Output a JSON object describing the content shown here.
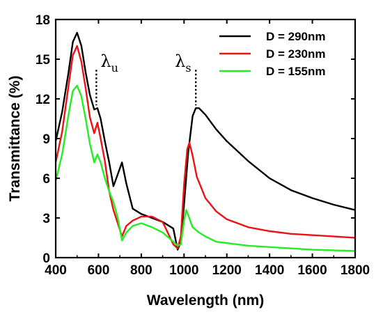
{
  "chart_data": {
    "type": "line",
    "xlabel": "Wavelength (nm)",
    "ylabel": "Transmittance (%)",
    "xlim": [
      400,
      1800
    ],
    "ylim": [
      0,
      18
    ],
    "xticks": [
      400,
      600,
      800,
      1000,
      1200,
      1400,
      1600,
      1800
    ],
    "yticks": [
      0,
      3,
      6,
      9,
      12,
      15,
      18
    ],
    "legend_position": "top-right",
    "annotations": [
      {
        "symbol": "λ",
        "subscript": "u",
        "x": 590
      },
      {
        "symbol": "λ",
        "subscript": "s",
        "x": 1055
      }
    ],
    "series": [
      {
        "name": "D = 290nm",
        "color": "#000000",
        "x": [
          400,
          430,
          460,
          480,
          500,
          520,
          540,
          560,
          580,
          595,
          610,
          630,
          650,
          670,
          690,
          710,
          730,
          760,
          800,
          850,
          900,
          950,
          970,
          985,
          1000,
          1020,
          1040,
          1055,
          1070,
          1100,
          1150,
          1200,
          1300,
          1400,
          1500,
          1600,
          1700,
          1800
        ],
        "y": [
          8.8,
          11.0,
          14.0,
          16.3,
          17.0,
          16.0,
          14.0,
          12.3,
          11.2,
          11.3,
          10.5,
          8.8,
          7.2,
          5.4,
          6.3,
          7.2,
          5.6,
          3.7,
          3.3,
          3.0,
          2.7,
          2.2,
          0.6,
          1.2,
          4.0,
          8.0,
          10.7,
          11.3,
          11.3,
          10.8,
          9.7,
          8.8,
          7.3,
          6.0,
          5.1,
          4.5,
          4.0,
          3.6
        ]
      },
      {
        "name": "D = 230nm",
        "color": "#ee1111",
        "x": [
          400,
          430,
          460,
          480,
          500,
          520,
          540,
          560,
          580,
          595,
          610,
          630,
          650,
          670,
          690,
          710,
          730,
          760,
          800,
          850,
          900,
          950,
          970,
          985,
          1000,
          1015,
          1025,
          1040,
          1060,
          1100,
          1150,
          1200,
          1300,
          1400,
          1500,
          1600,
          1700,
          1800
        ],
        "y": [
          7.2,
          9.5,
          13.0,
          15.3,
          16.0,
          14.8,
          12.8,
          10.6,
          9.4,
          10.2,
          9.0,
          7.3,
          5.0,
          3.6,
          2.6,
          1.6,
          2.4,
          2.8,
          3.1,
          3.1,
          2.7,
          1.0,
          0.7,
          1.6,
          5.5,
          8.2,
          8.7,
          7.7,
          6.1,
          4.5,
          3.5,
          2.9,
          2.3,
          2.0,
          1.8,
          1.7,
          1.6,
          1.5
        ]
      },
      {
        "name": "D = 155nm",
        "color": "#22ee22",
        "x": [
          400,
          430,
          460,
          480,
          500,
          520,
          540,
          560,
          580,
          595,
          610,
          630,
          650,
          670,
          690,
          710,
          730,
          760,
          800,
          850,
          900,
          950,
          970,
          985,
          1000,
          1010,
          1020,
          1040,
          1070,
          1100,
          1150,
          1200,
          1300,
          1400,
          1500,
          1600,
          1700,
          1800
        ],
        "y": [
          5.8,
          7.8,
          10.8,
          12.6,
          13.0,
          12.2,
          10.5,
          8.6,
          7.2,
          7.8,
          7.2,
          6.0,
          5.0,
          4.2,
          3.0,
          1.3,
          1.9,
          2.4,
          2.6,
          2.3,
          1.9,
          1.2,
          0.9,
          1.0,
          2.8,
          3.6,
          3.2,
          2.3,
          1.9,
          1.6,
          1.2,
          1.1,
          0.9,
          0.8,
          0.7,
          0.6,
          0.55,
          0.5
        ]
      }
    ]
  }
}
